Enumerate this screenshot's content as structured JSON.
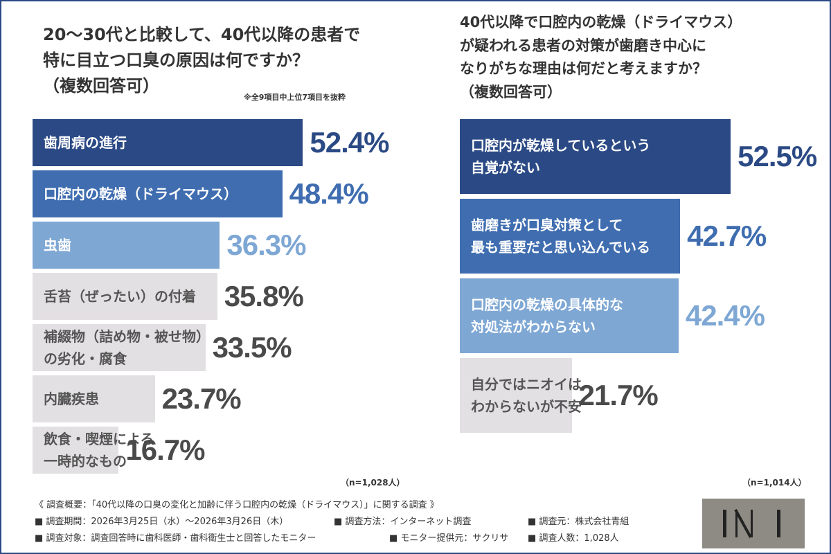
{
  "chart_data": [
    {
      "type": "bar",
      "orientation": "horizontal",
      "title": "20～30代と比較して、40代以降の患者で\n特に目立つ口臭の原因は何ですか？\n（複数回答可）",
      "note": "※全9項目中上位7項目を抜粋",
      "sample": "（n=1,028人）",
      "categories": [
        "歯周病の進行",
        "口腔内の乾燥（ドライマウス）",
        "虫歯",
        "舌苔（ぜったい）の付着",
        "補綴物（詰め物・被せ物）\nの劣化・腐食",
        "内臓疾患",
        "飲食・喫煙による\n一時的なもの"
      ],
      "values": [
        52.4,
        48.4,
        36.3,
        35.8,
        33.5,
        23.7,
        16.7
      ],
      "value_labels": [
        "52.4%",
        "48.4%",
        "36.3%",
        "35.8%",
        "33.5%",
        "23.7%",
        "16.7%"
      ],
      "colors": [
        "#2b4a85",
        "#3f6db0",
        "#7ea7d4",
        "#e3e0e3",
        "#e3e0e3",
        "#e3e0e3",
        "#e3e0e3"
      ],
      "category_colors": [
        "#ffffff",
        "#ffffff",
        "#ffffff",
        "#555555",
        "#555555",
        "#555555",
        "#555555"
      ],
      "value_label_colors": [
        "#2b4a85",
        "#3f6db0",
        "#7ea7d4",
        "#4a4a4a",
        "#4a4a4a",
        "#4a4a4a",
        "#4a4a4a"
      ]
    },
    {
      "type": "bar",
      "orientation": "horizontal",
      "title": "40代以降で口腔内の乾燥（ドライマウス）\nが疑われる患者の対策が歯磨き中心に\nなりがちな理由は何だと考えますか？\n（複数回答可）",
      "sample": "（n=1,014人）",
      "categories": [
        "口腔内が乾燥しているという\n自覚がない",
        "歯磨きが口臭対策として\n最も重要だと思い込んでいる",
        "口腔内の乾燥の具体的な\n対処法がわからない",
        "自分ではニオイは\nわからないが不安"
      ],
      "values": [
        52.5,
        42.7,
        42.4,
        21.7
      ],
      "value_labels": [
        "52.5%",
        "42.7%",
        "42.4%",
        "21.7%"
      ],
      "colors": [
        "#2b4a85",
        "#3f6db0",
        "#7ea7d4",
        "#e3e0e3"
      ],
      "category_colors": [
        "#ffffff",
        "#ffffff",
        "#ffffff",
        "#555555"
      ],
      "value_label_colors": [
        "#2b4a85",
        "#3f6db0",
        "#7ea7d4",
        "#4a4a4a"
      ]
    }
  ],
  "footer": {
    "title": "《 調査概要：「40代以降の口臭の変化と加齢に伴う口腔内の乾燥（ドライマウス）」に関する調査 》",
    "items": [
      "■ 調査期間：2026年3月25日（水）～2026年3月26日（木）",
      "■ 調査方法：インターネット調査",
      "■ 調査元：株式会社青組",
      "■ 調査対象：調査回答時に歯科医師・歯科衛生士と回答したモニター",
      "■ モニター提供元：サクリサ",
      "■ 調査人数：1,028人"
    ]
  }
}
